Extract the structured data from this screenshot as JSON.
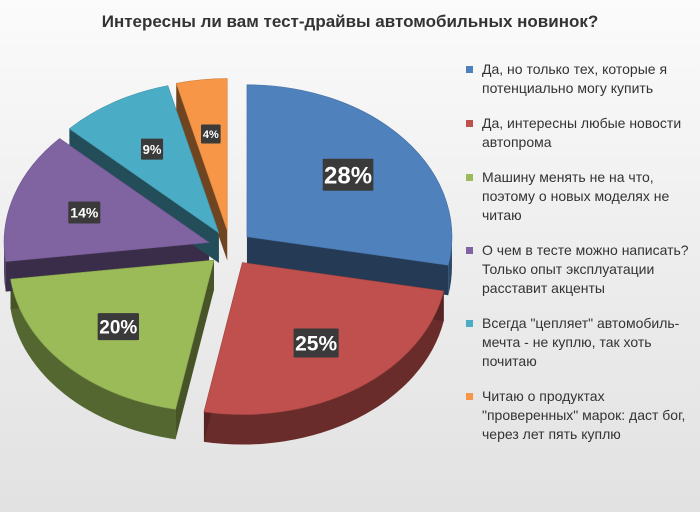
{
  "chart_data": {
    "type": "pie",
    "title": "Интересны ли вам тест-драйвы автомобильных новинок?",
    "legend_position": "right",
    "slices": [
      {
        "label": "Да, но только тех, которые я потенциально могу купить",
        "value": 28,
        "display": "28%",
        "color": "#4f81bd"
      },
      {
        "label": "Да, интересны любые новости автопрома",
        "value": 25,
        "display": "25%",
        "color": "#c0504d"
      },
      {
        "label": "Машину менять не на что, поэтому о новых моделях не читаю",
        "value": 20,
        "display": "20%",
        "color": "#9bbb59"
      },
      {
        "label": "О чем в тесте можно написать? Только опыт эксплуатации расставит акценты",
        "value": 14,
        "display": "14%",
        "color": "#8064a2"
      },
      {
        "label": "Всегда \"цепляет\" автомобиль-мечта - не куплю, так хоть почитаю",
        "value": 9,
        "display": "9%",
        "color": "#4bacc6"
      },
      {
        "label": "Читаю о продуктах \"проверенных\" марок: даст бог, через лет пять куплю",
        "value": 4,
        "display": "4%",
        "color": "#f79646"
      }
    ]
  }
}
